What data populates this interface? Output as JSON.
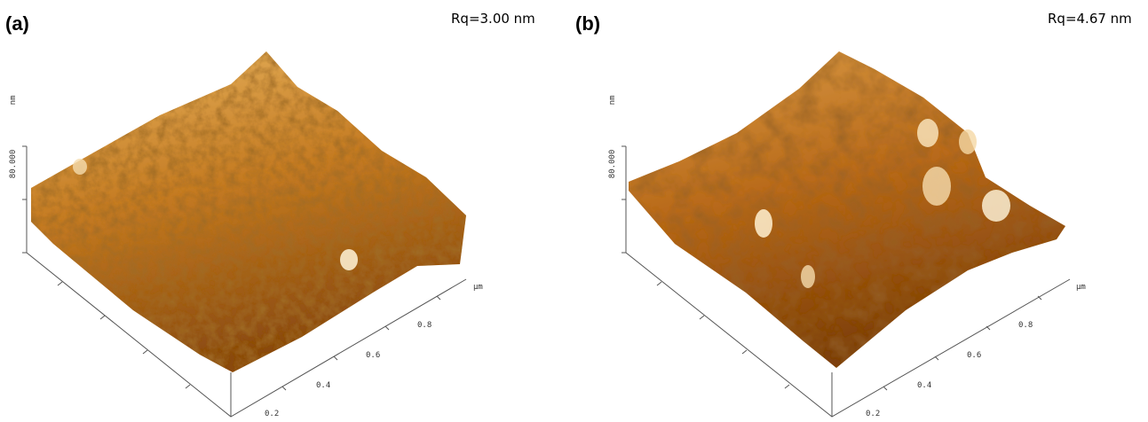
{
  "panels": [
    {
      "label": "(a)",
      "roughness": "Rq=3.00 nm",
      "z_unit": "nm",
      "z_tick": "80.000",
      "x_unit": "µm",
      "x_ticks": [
        "0.2",
        "0.4",
        "0.6",
        "0.8"
      ]
    },
    {
      "label": "(b)",
      "roughness": "Rq=4.67 nm",
      "z_unit": "nm",
      "z_tick": "80.000",
      "x_unit": "µm",
      "x_ticks": [
        "0.2",
        "0.4",
        "0.6",
        "0.8"
      ]
    }
  ]
}
